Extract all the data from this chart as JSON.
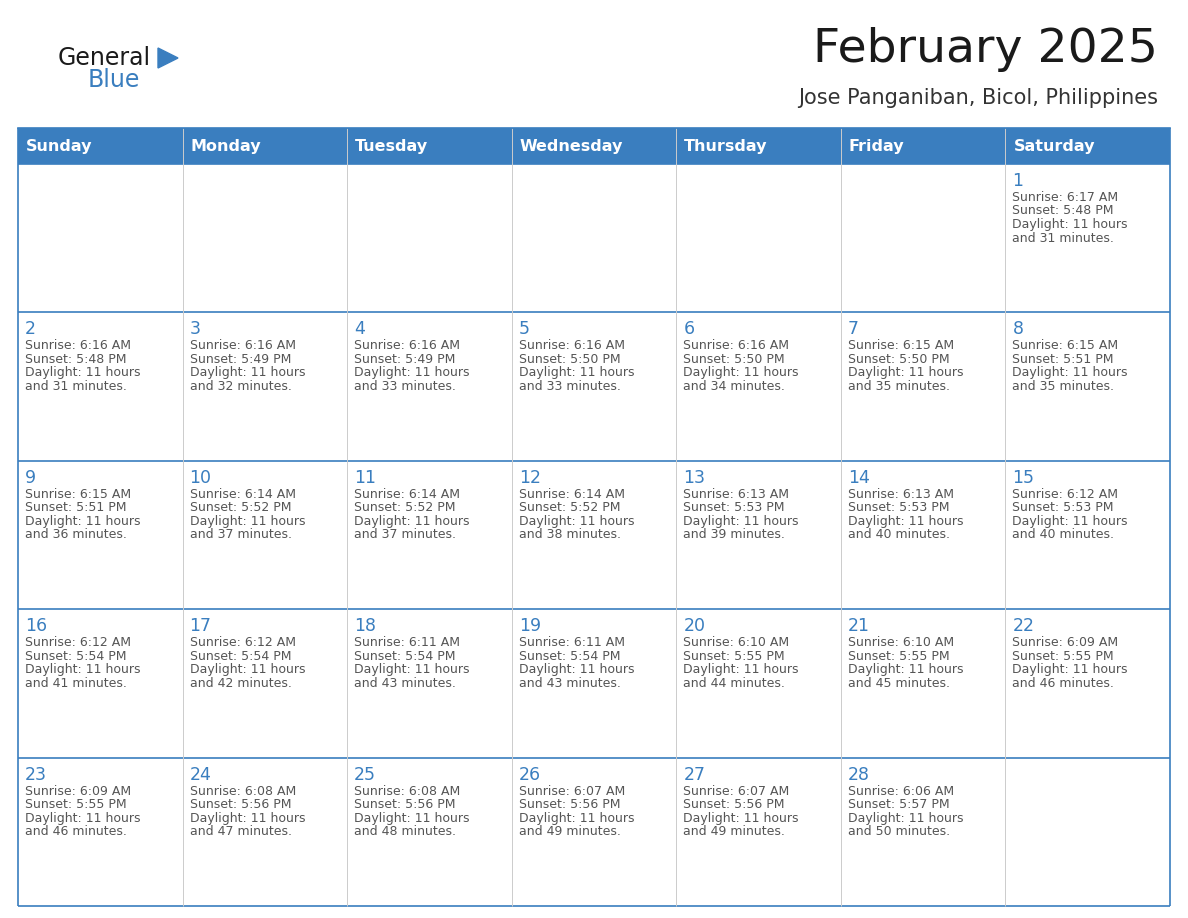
{
  "title": "February 2025",
  "subtitle": "Jose Panganiban, Bicol, Philippines",
  "header_color": "#3a7ebf",
  "header_text_color": "#ffffff",
  "border_color": "#3a7ebf",
  "day_names": [
    "Sunday",
    "Monday",
    "Tuesday",
    "Wednesday",
    "Thursday",
    "Friday",
    "Saturday"
  ],
  "title_color": "#1a1a1a",
  "subtitle_color": "#333333",
  "day_number_color": "#3a7ebf",
  "cell_text_color": "#555555",
  "logo_general_color": "#1a1a1a",
  "logo_blue_color": "#3a7ebf",
  "days": [
    {
      "date": 1,
      "row": 0,
      "col": 6,
      "sunrise": "6:17 AM",
      "sunset": "5:48 PM",
      "daylight_hours": 11,
      "daylight_minutes": 31
    },
    {
      "date": 2,
      "row": 1,
      "col": 0,
      "sunrise": "6:16 AM",
      "sunset": "5:48 PM",
      "daylight_hours": 11,
      "daylight_minutes": 31
    },
    {
      "date": 3,
      "row": 1,
      "col": 1,
      "sunrise": "6:16 AM",
      "sunset": "5:49 PM",
      "daylight_hours": 11,
      "daylight_minutes": 32
    },
    {
      "date": 4,
      "row": 1,
      "col": 2,
      "sunrise": "6:16 AM",
      "sunset": "5:49 PM",
      "daylight_hours": 11,
      "daylight_minutes": 33
    },
    {
      "date": 5,
      "row": 1,
      "col": 3,
      "sunrise": "6:16 AM",
      "sunset": "5:50 PM",
      "daylight_hours": 11,
      "daylight_minutes": 33
    },
    {
      "date": 6,
      "row": 1,
      "col": 4,
      "sunrise": "6:16 AM",
      "sunset": "5:50 PM",
      "daylight_hours": 11,
      "daylight_minutes": 34
    },
    {
      "date": 7,
      "row": 1,
      "col": 5,
      "sunrise": "6:15 AM",
      "sunset": "5:50 PM",
      "daylight_hours": 11,
      "daylight_minutes": 35
    },
    {
      "date": 8,
      "row": 1,
      "col": 6,
      "sunrise": "6:15 AM",
      "sunset": "5:51 PM",
      "daylight_hours": 11,
      "daylight_minutes": 35
    },
    {
      "date": 9,
      "row": 2,
      "col": 0,
      "sunrise": "6:15 AM",
      "sunset": "5:51 PM",
      "daylight_hours": 11,
      "daylight_minutes": 36
    },
    {
      "date": 10,
      "row": 2,
      "col": 1,
      "sunrise": "6:14 AM",
      "sunset": "5:52 PM",
      "daylight_hours": 11,
      "daylight_minutes": 37
    },
    {
      "date": 11,
      "row": 2,
      "col": 2,
      "sunrise": "6:14 AM",
      "sunset": "5:52 PM",
      "daylight_hours": 11,
      "daylight_minutes": 37
    },
    {
      "date": 12,
      "row": 2,
      "col": 3,
      "sunrise": "6:14 AM",
      "sunset": "5:52 PM",
      "daylight_hours": 11,
      "daylight_minutes": 38
    },
    {
      "date": 13,
      "row": 2,
      "col": 4,
      "sunrise": "6:13 AM",
      "sunset": "5:53 PM",
      "daylight_hours": 11,
      "daylight_minutes": 39
    },
    {
      "date": 14,
      "row": 2,
      "col": 5,
      "sunrise": "6:13 AM",
      "sunset": "5:53 PM",
      "daylight_hours": 11,
      "daylight_minutes": 40
    },
    {
      "date": 15,
      "row": 2,
      "col": 6,
      "sunrise": "6:12 AM",
      "sunset": "5:53 PM",
      "daylight_hours": 11,
      "daylight_minutes": 40
    },
    {
      "date": 16,
      "row": 3,
      "col": 0,
      "sunrise": "6:12 AM",
      "sunset": "5:54 PM",
      "daylight_hours": 11,
      "daylight_minutes": 41
    },
    {
      "date": 17,
      "row": 3,
      "col": 1,
      "sunrise": "6:12 AM",
      "sunset": "5:54 PM",
      "daylight_hours": 11,
      "daylight_minutes": 42
    },
    {
      "date": 18,
      "row": 3,
      "col": 2,
      "sunrise": "6:11 AM",
      "sunset": "5:54 PM",
      "daylight_hours": 11,
      "daylight_minutes": 43
    },
    {
      "date": 19,
      "row": 3,
      "col": 3,
      "sunrise": "6:11 AM",
      "sunset": "5:54 PM",
      "daylight_hours": 11,
      "daylight_minutes": 43
    },
    {
      "date": 20,
      "row": 3,
      "col": 4,
      "sunrise": "6:10 AM",
      "sunset": "5:55 PM",
      "daylight_hours": 11,
      "daylight_minutes": 44
    },
    {
      "date": 21,
      "row": 3,
      "col": 5,
      "sunrise": "6:10 AM",
      "sunset": "5:55 PM",
      "daylight_hours": 11,
      "daylight_minutes": 45
    },
    {
      "date": 22,
      "row": 3,
      "col": 6,
      "sunrise": "6:09 AM",
      "sunset": "5:55 PM",
      "daylight_hours": 11,
      "daylight_minutes": 46
    },
    {
      "date": 23,
      "row": 4,
      "col": 0,
      "sunrise": "6:09 AM",
      "sunset": "5:55 PM",
      "daylight_hours": 11,
      "daylight_minutes": 46
    },
    {
      "date": 24,
      "row": 4,
      "col": 1,
      "sunrise": "6:08 AM",
      "sunset": "5:56 PM",
      "daylight_hours": 11,
      "daylight_minutes": 47
    },
    {
      "date": 25,
      "row": 4,
      "col": 2,
      "sunrise": "6:08 AM",
      "sunset": "5:56 PM",
      "daylight_hours": 11,
      "daylight_minutes": 48
    },
    {
      "date": 26,
      "row": 4,
      "col": 3,
      "sunrise": "6:07 AM",
      "sunset": "5:56 PM",
      "daylight_hours": 11,
      "daylight_minutes": 49
    },
    {
      "date": 27,
      "row": 4,
      "col": 4,
      "sunrise": "6:07 AM",
      "sunset": "5:56 PM",
      "daylight_hours": 11,
      "daylight_minutes": 49
    },
    {
      "date": 28,
      "row": 4,
      "col": 5,
      "sunrise": "6:06 AM",
      "sunset": "5:57 PM",
      "daylight_hours": 11,
      "daylight_minutes": 50
    }
  ]
}
